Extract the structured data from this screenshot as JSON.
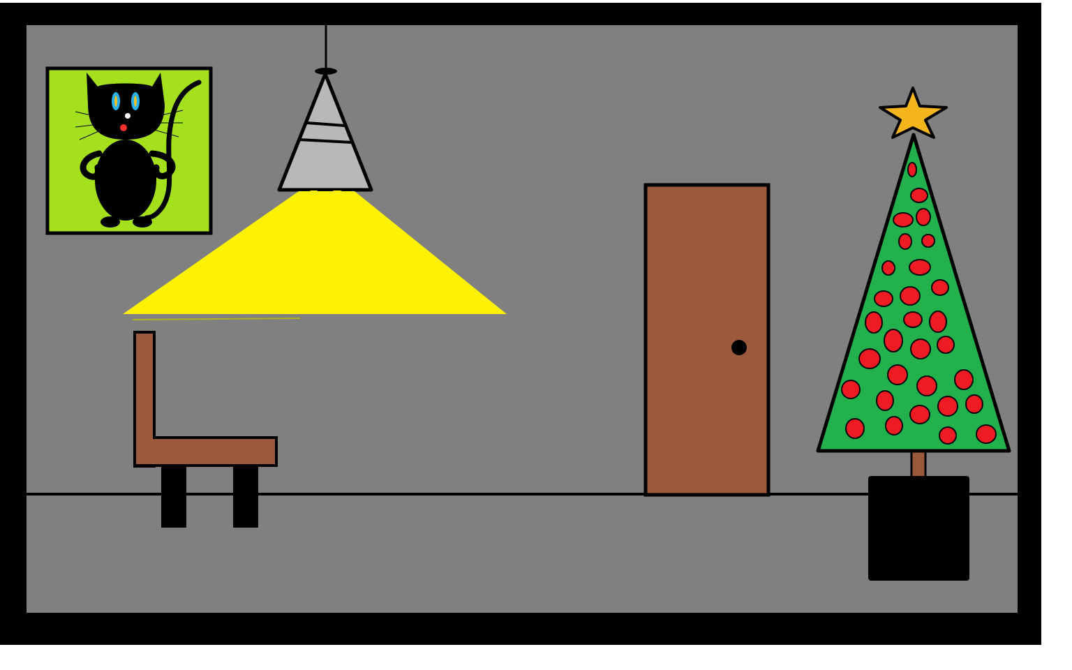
{
  "scene": {
    "colors": {
      "frame": "#000000",
      "wall": "#808080",
      "floor": "#808080",
      "picture_bg": "#a4e01c",
      "cat": "#000000",
      "cat_eyes": "#2ab0e8",
      "cat_pupils": "#f0c020",
      "cat_nose": "#ff3030",
      "lamp_shade": "#b8b8b8",
      "light_beam": "#fff200",
      "chair": "#9b5a3b",
      "door": "#9b5a3b",
      "door_knob": "#000000",
      "tree": "#22b14c",
      "ornaments": "#ed1c24",
      "star": "#f5b51c",
      "trunk": "#9b5a3b",
      "pot": "#000000"
    },
    "objects": [
      "framed-cat-picture",
      "pendant-lamp",
      "light-beam",
      "chair",
      "door",
      "christmas-tree",
      "tree-pot"
    ]
  }
}
